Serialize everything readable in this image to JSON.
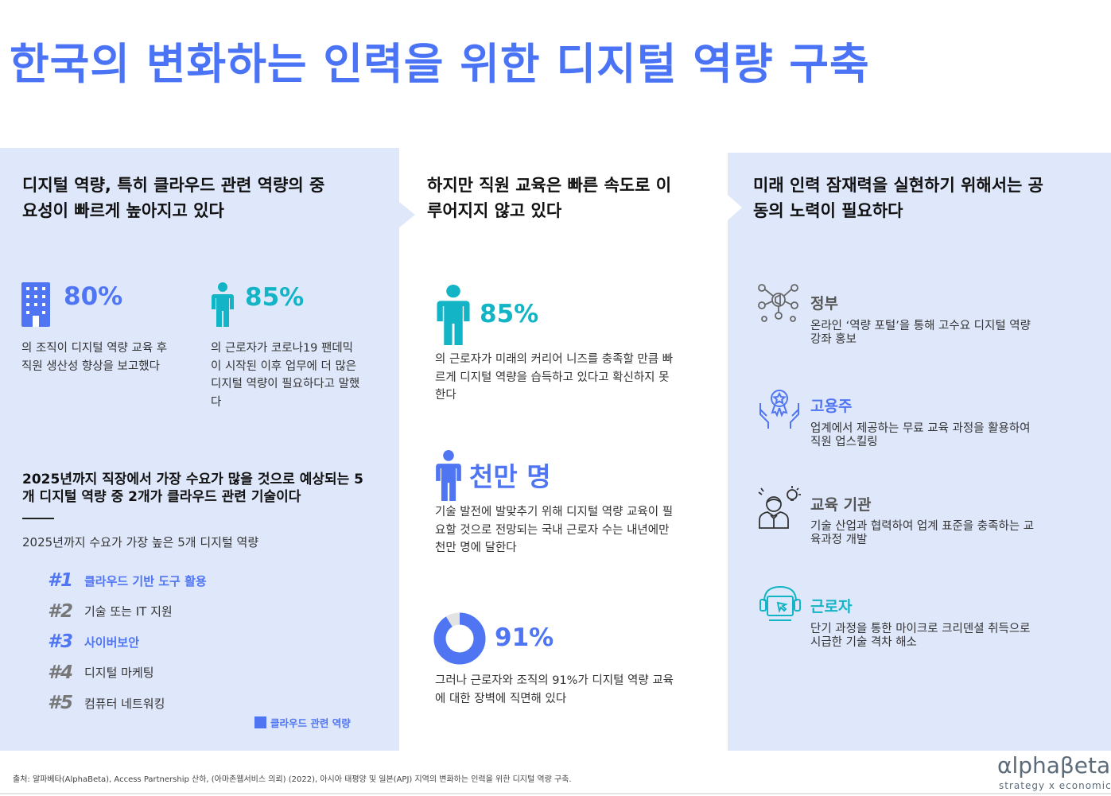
{
  "title": "한국의 변화하는 인력을 위한 디지털 역량 구축",
  "columns": {
    "left": {
      "heading_line1": "디지털 역량, 특히 클라우드 관련 역량의 중",
      "heading_line2": "요성이 빠르게 높아지고 있다",
      "stats": [
        {
          "icon": "building-icon",
          "value": "80%",
          "text_line1": "의 조직이 디지털 역량 교육 후",
          "text_line2": "직원 생산성 향상을 보고했다",
          "text_line3": "",
          "text_line4": ""
        },
        {
          "icon": "person-icon",
          "value": "85%",
          "text_line1": "의 근로자가 코로나19 팬데믹",
          "text_line2": "이 시작된 이후 업무에 더 많은",
          "text_line3": "디지털 역량이 필요하다고 말했",
          "text_line4": "다"
        }
      ],
      "subheading_line1": "2025년까지 직장에서 가장 수요가 많을 것으로 예상되는 5",
      "subheading_line2": "개 디지털 역량 중 2개가 클라우드 관련 기술이다",
      "list_title": "2025년까지 수요가 가장 높은 5개 디지털 역량",
      "ranking": [
        {
          "rank": "#1",
          "label": "클라우드 기반 도구 활용",
          "cloud": true
        },
        {
          "rank": "#2",
          "label": "기술 또는 IT 지원",
          "cloud": false
        },
        {
          "rank": "#3",
          "label": "사이버보안",
          "cloud": true
        },
        {
          "rank": "#4",
          "label": "디지털 마케팅",
          "cloud": false
        },
        {
          "rank": "#5",
          "label": "컴퓨터 네트워킹",
          "cloud": false
        }
      ],
      "legend_label": "클라우드 관련 역량"
    },
    "middle": {
      "heading_line1": "하지만 직원 교육은 빠른 속도로 이",
      "heading_line2": "루어지지 않고 있다",
      "stats": [
        {
          "icon": "person-icon",
          "value": "85%",
          "text_line1": "의 근로자가 미래의 커리어 니즈를 충족할 만큼 빠",
          "text_line2": "르게 디지털 역량을 습득하고 있다고 확신하지 못",
          "text_line3": "한다"
        },
        {
          "icon": "person-icon",
          "value": "천만 명",
          "text_line1": "기술 발전에 발맞추기 위해 디지털 역량 교육이 필",
          "text_line2": "요할 것으로 전망되는 국내 근로자 수는 내년에만",
          "text_line3": "천만 명에 달한다"
        },
        {
          "icon": "donut-chart-icon",
          "value": "91%",
          "percent": 91,
          "text_line1": "그러나 근로자와 조직의 91%가 디지털 역량 교육",
          "text_line2": "에 대한 장벽에 직면해 있다",
          "text_line3": ""
        }
      ]
    },
    "right": {
      "heading_line1": "미래 인력 잠재력을 실현하기 위해서는 공",
      "heading_line2": "동의 노력이 필요하다",
      "stakeholders": [
        {
          "icon": "government-network-icon",
          "title": "정부",
          "text_line1": "온라인 ‘역량 포털’을 통해 고수요 디지털 역량",
          "text_line2": "강좌 홍보"
        },
        {
          "icon": "hands-award-icon",
          "title": "고용주",
          "text_line1": "업계에서 제공하는 무료 교육 과정을 활용하여",
          "text_line2": "직원 업스킬링"
        },
        {
          "icon": "educator-idea-icon",
          "title": "교육 기관",
          "text_line1": "기술 산업과 협력하여 업계 표준을 충족하는 교",
          "text_line2": "육과정 개발"
        },
        {
          "icon": "online-course-icon",
          "title": "근로자",
          "text_line1": "단기 과정을 통한 마이크로 크리덴셜 취득으로",
          "text_line2": "시급한 기술 격차 해소"
        }
      ]
    }
  },
  "colors": {
    "blue": "#4f75f2",
    "teal": "#12b4c6",
    "panel": "#dfe8fb",
    "title": "#4a74f5"
  },
  "footer": {
    "source": "출처: 알파베타(AlphaBeta), Access Partnership 산하, (아마존웹서비스 의뢰) (2022), 아시아 태평양 및 일본(APJ) 지역의 변화하는 인력을 위한 디지털 역량 구축.",
    "logo": "αlphaβeta",
    "tagline": "strategy x economics"
  }
}
